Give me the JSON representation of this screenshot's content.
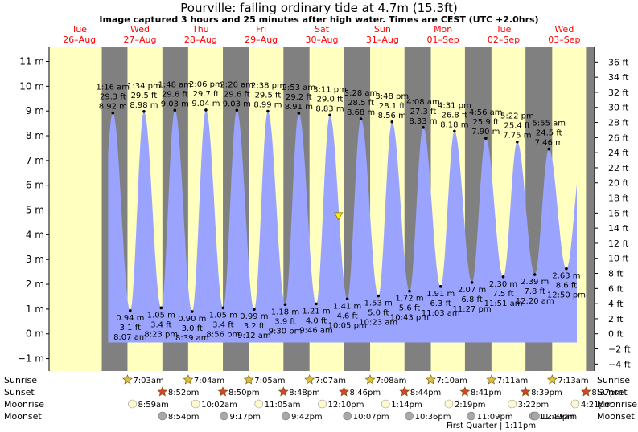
{
  "header": {
    "title": "Pourville: falling  ordinary tide at 4.7m (15.3ft)",
    "subtitle": "Image captured 3 hours and 25 minutes after high water. Times are CEST (UTC +2.0hrs)"
  },
  "colors": {
    "day": "#ffffc0",
    "night": "#808080",
    "tide": "#9aa4ff",
    "day_label": "#ff0000",
    "marker": "#ffee00"
  },
  "chart_data": {
    "type": "area",
    "title": "Pourville: falling  ordinary tide at 4.7m (15.3ft)",
    "subtitle": "Image captured 3 hours and 25 minutes after high water. Times are CEST (UTC +2.0hrs)",
    "y_left": {
      "unit": "m",
      "ylim": [
        -1.5,
        11.6
      ],
      "ticks": [
        -1,
        0,
        1,
        2,
        3,
        4,
        5,
        6,
        7,
        8,
        9,
        10,
        11
      ],
      "tick_labels": [
        "−1 m",
        "0 m",
        "1 m",
        "2 m",
        "3 m",
        "4 m",
        "5 m",
        "6 m",
        "7 m",
        "8 m",
        "9 m",
        "10 m",
        "11 m"
      ]
    },
    "y_right": {
      "unit": "ft",
      "ticks": [
        -4,
        -2,
        0,
        2,
        4,
        6,
        8,
        10,
        12,
        14,
        16,
        18,
        20,
        22,
        24,
        26,
        28,
        30,
        32,
        34,
        36
      ],
      "tick_labels": [
        "−4 ft",
        "−2 ft",
        "0 ft",
        "2 ft",
        "4 ft",
        "6 ft",
        "8 ft",
        "10 ft",
        "12 ft",
        "14 ft",
        "16 ft",
        "18 ft",
        "20 ft",
        "22 ft",
        "24 ft",
        "26 ft",
        "28 ft",
        "30 ft",
        "32 ft",
        "34 ft",
        "36 ft"
      ]
    },
    "days": [
      {
        "weekday": "Tue",
        "date": "26–Aug"
      },
      {
        "weekday": "Wed",
        "date": "27–Aug"
      },
      {
        "weekday": "Thu",
        "date": "28–Aug"
      },
      {
        "weekday": "Fri",
        "date": "29–Aug"
      },
      {
        "weekday": "Sat",
        "date": "30–Aug"
      },
      {
        "weekday": "Sun",
        "date": "31–Aug"
      },
      {
        "weekday": "Mon",
        "date": "01–Sep"
      },
      {
        "weekday": "Tue",
        "date": "02–Sep"
      },
      {
        "weekday": "Wed",
        "date": "03–Sep"
      }
    ],
    "time_range_hours": [
      -24,
      192
    ],
    "high_tides": [
      {
        "time": "1:16 am",
        "ft": "29.3 ft",
        "m": "8.92 m",
        "h": 1.27,
        "value": 8.92
      },
      {
        "time": "1:34 pm",
        "ft": "29.5 ft",
        "m": "8.98 m",
        "h": 13.57,
        "value": 8.98
      },
      {
        "time": "1:48 am",
        "ft": "29.6 ft",
        "m": "9.03 m",
        "h": 25.8,
        "value": 9.03
      },
      {
        "time": "2:06 pm",
        "ft": "29.7 ft",
        "m": "9.04 m",
        "h": 38.1,
        "value": 9.04
      },
      {
        "time": "2:20 am",
        "ft": "29.6 ft",
        "m": "9.03 m",
        "h": 50.33,
        "value": 9.03
      },
      {
        "time": "2:38 pm",
        "ft": "29.5 ft",
        "m": "8.99 m",
        "h": 62.63,
        "value": 8.99
      },
      {
        "time": "2:53 am",
        "ft": "29.2 ft",
        "m": "8.91 m",
        "h": 74.88,
        "value": 8.91
      },
      {
        "time": "3:11 pm",
        "ft": "29.0 ft",
        "m": "8.83 m",
        "h": 87.18,
        "value": 8.83
      },
      {
        "time": "3:28 am",
        "ft": "28.5 ft",
        "m": "8.68 m",
        "h": 99.47,
        "value": 8.68
      },
      {
        "time": "3:48 pm",
        "ft": "28.1 ft",
        "m": "8.56 m",
        "h": 111.8,
        "value": 8.56
      },
      {
        "time": "4:08 am",
        "ft": "27.3 ft",
        "m": "8.33 m",
        "h": 124.13,
        "value": 8.33
      },
      {
        "time": "4:31 pm",
        "ft": "26.8 ft",
        "m": "8.18 m",
        "h": 136.52,
        "value": 8.18
      },
      {
        "time": "4:56 am",
        "ft": "25.9 ft",
        "m": "7.90 m",
        "h": 148.93,
        "value": 7.9
      },
      {
        "time": "5:22 pm",
        "ft": "25.4 ft",
        "m": "7.75 m",
        "h": 161.37,
        "value": 7.75
      },
      {
        "time": "5:55 am",
        "ft": "24.5 ft",
        "m": "7.46 m",
        "h": 173.92,
        "value": 7.46
      }
    ],
    "low_tides": [
      {
        "time": "8:07 am",
        "ft": "3.1 ft",
        "m": "0.94 m",
        "h": 8.12,
        "value": 0.94
      },
      {
        "time": "8:23 pm",
        "ft": "3.4 ft",
        "m": "1.05 m",
        "h": 20.38,
        "value": 1.05
      },
      {
        "time": "8:39 am",
        "ft": "3.0 ft",
        "m": "0.90 m",
        "h": 32.65,
        "value": 0.9
      },
      {
        "time": "8:56 pm",
        "ft": "3.4 ft",
        "m": "1.05 m",
        "h": 44.93,
        "value": 1.05
      },
      {
        "time": "9:12 am",
        "ft": "3.2 ft",
        "m": "0.99 m",
        "h": 57.2,
        "value": 0.99
      },
      {
        "time": "9:30 pm",
        "ft": "3.9 ft",
        "m": "1.18 m",
        "h": 69.5,
        "value": 1.18
      },
      {
        "time": "9:46 am",
        "ft": "4.0 ft",
        "m": "1.21 m",
        "h": 81.77,
        "value": 1.21
      },
      {
        "time": "10:05 pm",
        "ft": "4.6 ft",
        "m": "1.41 m",
        "h": 94.08,
        "value": 1.41
      },
      {
        "time": "10:23 am",
        "ft": "5.0 ft",
        "m": "1.53 m",
        "h": 106.38,
        "value": 1.53
      },
      {
        "time": "10:43 pm",
        "ft": "5.6 ft",
        "m": "1.72 m",
        "h": 118.72,
        "value": 1.72
      },
      {
        "time": "11:03 am",
        "ft": "6.3 ft",
        "m": "1.91 m",
        "h": 131.05,
        "value": 1.91
      },
      {
        "time": "11:27 pm",
        "ft": "6.8 ft",
        "m": "2.07 m",
        "h": 143.45,
        "value": 2.07
      },
      {
        "time": "11:51 am",
        "ft": "7.5 ft",
        "m": "2.30 m",
        "h": 155.85,
        "value": 2.3
      },
      {
        "time": "12:20 am",
        "ft": "7.8 ft",
        "m": "2.39 m",
        "h": 168.33,
        "value": 2.39
      },
      {
        "time": "12:50 pm",
        "ft": "8.6 ft",
        "m": "2.63 m",
        "h": 180.83,
        "value": 2.63
      }
    ],
    "current": {
      "h": 90.6,
      "value": 4.7
    },
    "series": [
      {
        "name": "",
        "type": "area"
      }
    ]
  },
  "astro": {
    "labels": [
      "Sunrise",
      "Sunset",
      "Moonrise",
      "Moonset"
    ],
    "sunrise": [
      {
        "text": "7:03am",
        "h": 7.05
      },
      {
        "text": "7:04am",
        "h": 31.07
      },
      {
        "text": "7:05am",
        "h": 55.08
      },
      {
        "text": "7:07am",
        "h": 79.12
      },
      {
        "text": "7:08am",
        "h": 103.13
      },
      {
        "text": "7:10am",
        "h": 127.17
      },
      {
        "text": "7:11am",
        "h": 151.18
      },
      {
        "text": "7:13am",
        "h": 175.22
      }
    ],
    "sunset": [
      {
        "text": "8:52pm",
        "h": 20.87
      },
      {
        "text": "8:50pm",
        "h": 44.83
      },
      {
        "text": "8:48pm",
        "h": 68.8
      },
      {
        "text": "8:46pm",
        "h": 92.77
      },
      {
        "text": "8:44pm",
        "h": 116.73
      },
      {
        "text": "8:41pm",
        "h": 140.68
      },
      {
        "text": "8:39pm",
        "h": 164.65
      },
      {
        "text": "8:37pm",
        "h": 188.62
      }
    ],
    "moonrise": [
      {
        "text": "8:59am",
        "h": 8.98
      },
      {
        "text": "10:02am",
        "h": 34.03
      },
      {
        "text": "11:05am",
        "h": 59.08
      },
      {
        "text": "12:10pm",
        "h": 84.17
      },
      {
        "text": "1:14pm",
        "h": 109.23
      },
      {
        "text": "2:19pm",
        "h": 134.32
      },
      {
        "text": "3:22pm",
        "h": 159.37
      },
      {
        "text": "4:21pm",
        "h": 184.35
      }
    ],
    "moonset": [
      {
        "text": "8:54pm",
        "h": 20.9
      },
      {
        "text": "9:17pm",
        "h": 45.28
      },
      {
        "text": "9:42pm",
        "h": 69.7
      },
      {
        "text": "10:07pm",
        "h": 94.12
      },
      {
        "text": "10:36pm",
        "h": 118.6
      },
      {
        "text": "11:09pm",
        "h": 143.15
      },
      {
        "text": "11:49pm",
        "h": 167.82
      },
      {
        "text": "12:35am",
        "h": 168.58
      }
    ],
    "moon_phase": "First Quarter | 1:11pm"
  }
}
